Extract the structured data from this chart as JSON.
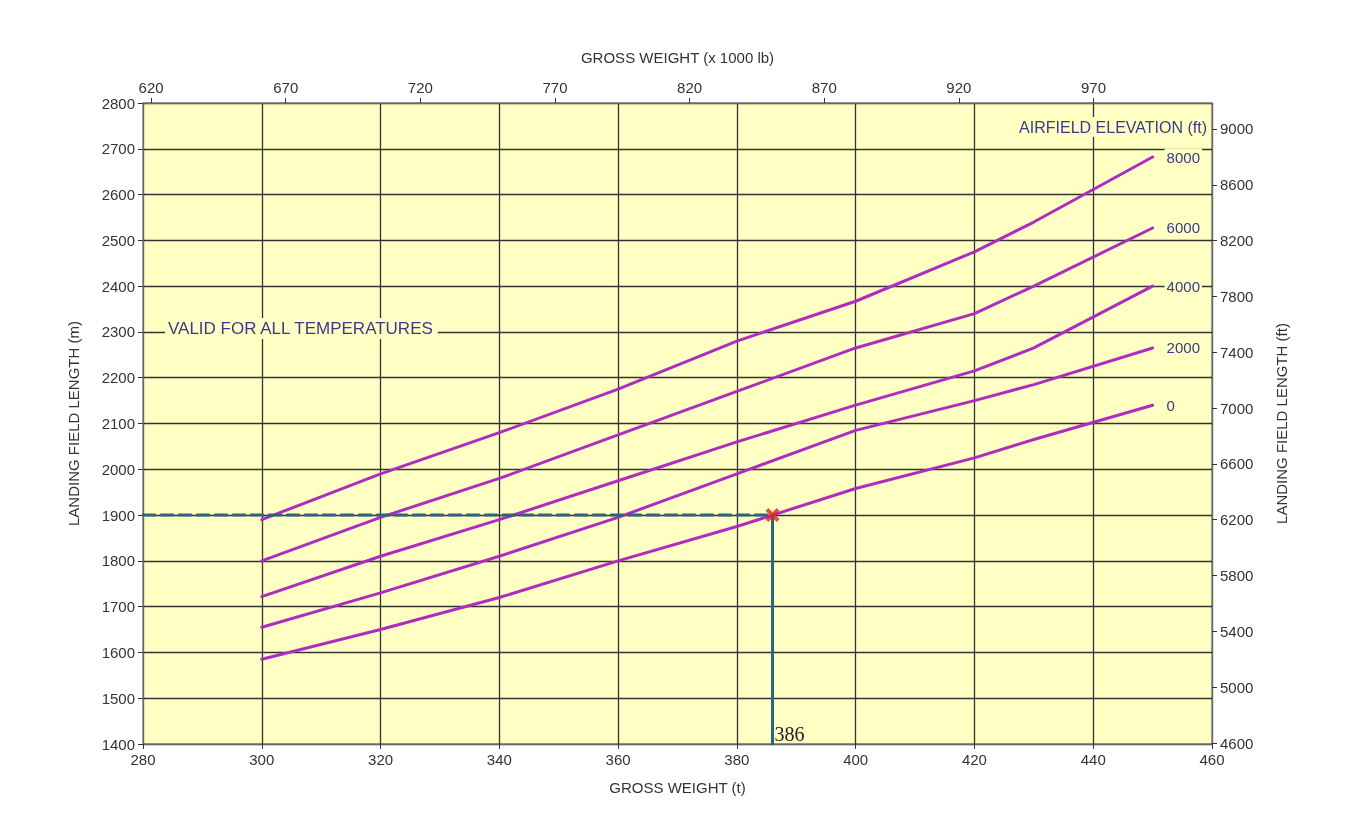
{
  "chart_data": {
    "type": "line",
    "xlabel": "GROSS WEIGHT (t)",
    "x2label": "GROSS WEIGHT (x 1000 lb)",
    "ylabel": "LANDING FIELD LENGTH (m)",
    "y2label": "LANDING FIELD LENGTH (ft)",
    "legend_title": "AIRFIELD ELEVATION (ft)",
    "xlim": [
      280,
      460
    ],
    "xticks": [
      280,
      300,
      320,
      340,
      360,
      380,
      400,
      420,
      440,
      460
    ],
    "x2lim": [
      617,
      1014
    ],
    "x2ticks": [
      620,
      670,
      720,
      770,
      820,
      870,
      920,
      970
    ],
    "ylim": [
      1400,
      2800
    ],
    "yticks": [
      1400,
      1500,
      1600,
      1700,
      1800,
      1900,
      2000,
      2100,
      2200,
      2300,
      2400,
      2500,
      2600,
      2700,
      2800
    ],
    "y2lim": [
      4593,
      9186
    ],
    "y2ticks": [
      4600,
      5000,
      5400,
      5800,
      6200,
      6600,
      7000,
      7400,
      7800,
      8200,
      8600,
      9000
    ],
    "grid": true,
    "legend": false,
    "marker": "none",
    "line_style": "solid",
    "annotations": [
      "VALID FOR ALL TEMPERATURES",
      {
        "text": "386",
        "x": 386,
        "y": 1400
      }
    ],
    "series": [
      {
        "name": "8000",
        "color": "#b02cc0",
        "x": [
          300,
          320,
          340,
          360,
          380,
          400,
          420,
          430,
          450
        ],
        "values": [
          1890,
          1990,
          2080,
          2175,
          2280,
          2367,
          2475,
          2540,
          2682
        ]
      },
      {
        "name": "6000",
        "color": "#b02cc0",
        "x": [
          300,
          320,
          340,
          360,
          380,
          400,
          420,
          430,
          450
        ],
        "values": [
          1800,
          1895,
          1980,
          2075,
          2170,
          2265,
          2340,
          2400,
          2527
        ]
      },
      {
        "name": "4000",
        "color": "#b02cc0",
        "x": [
          300,
          320,
          340,
          360,
          380,
          400,
          420,
          430,
          450
        ],
        "values": [
          1722,
          1810,
          1890,
          1975,
          2060,
          2140,
          2215,
          2265,
          2400
        ]
      },
      {
        "name": "2000",
        "color": "#b02cc0",
        "x": [
          300,
          320,
          340,
          360,
          380,
          400,
          420,
          430,
          450
        ],
        "values": [
          1655,
          1730,
          1810,
          1895,
          1990,
          2085,
          2150,
          2185,
          2265
        ]
      },
      {
        "name": "0",
        "color": "#b02cc0",
        "x": [
          300,
          320,
          340,
          360,
          380,
          386,
          400,
          420,
          430,
          450
        ],
        "values": [
          1585,
          1650,
          1720,
          1800,
          1875,
          1900,
          1958,
          2025,
          2065,
          2140
        ]
      },
      {
        "type": "line",
        "color": "#2a6482",
        "line_style": "dashed",
        "x": [
          280,
          386
        ],
        "values": [
          1900,
          1900
        ]
      },
      {
        "type": "line",
        "color": "#2a6482",
        "x": [
          386,
          386
        ],
        "values": [
          1400,
          1900
        ]
      },
      {
        "type": "scatter",
        "color": "#e02020",
        "marker": "cross",
        "x": [
          386
        ],
        "values": [
          1900
        ]
      }
    ]
  }
}
